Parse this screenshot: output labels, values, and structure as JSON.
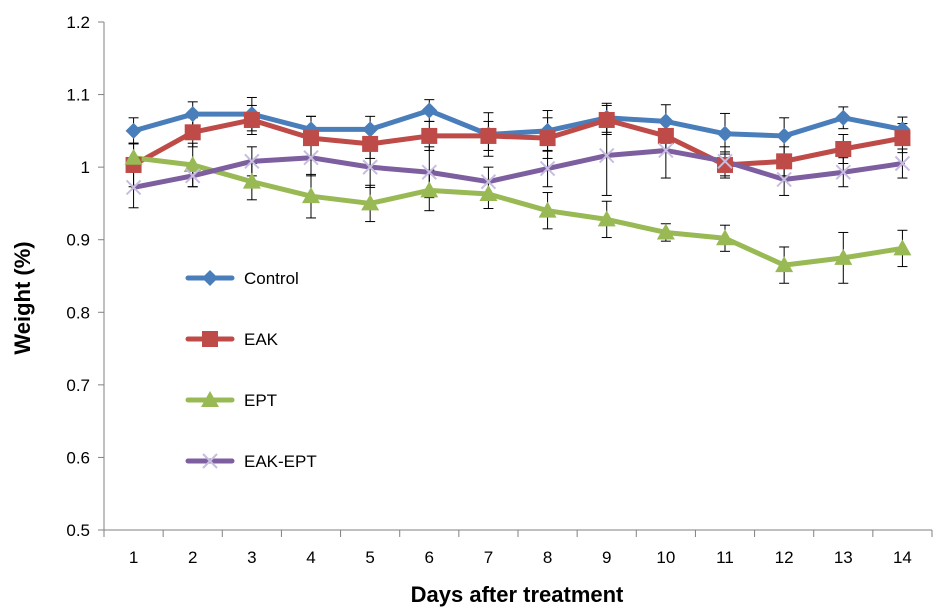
{
  "chart_data": {
    "type": "line",
    "title": "",
    "xlabel": "Days after treatment",
    "ylabel": "Weight (%)",
    "x": [
      1,
      2,
      3,
      4,
      5,
      6,
      7,
      8,
      9,
      10,
      11,
      12,
      13,
      14
    ],
    "xtick_labels": [
      "1",
      "2",
      "3",
      "4",
      "5",
      "6",
      "7",
      "8",
      "9",
      "10",
      "11",
      "12",
      "13",
      "14"
    ],
    "ylim": [
      0.5,
      1.2
    ],
    "yticks": [
      0.5,
      0.6,
      0.7,
      0.8,
      0.9,
      1.0,
      1.1,
      1.2
    ],
    "ytick_labels": [
      "0.5",
      "0.6",
      "0.7",
      "0.8",
      "0.9",
      "1",
      "1.1",
      "1.2"
    ],
    "grid": false,
    "legend_placement": "center-left",
    "series": [
      {
        "name": "Control",
        "color": "#4a7ebb",
        "marker": "diamond",
        "values": [
          1.05,
          1.073,
          1.073,
          1.052,
          1.052,
          1.078,
          1.045,
          1.05,
          1.068,
          1.063,
          1.046,
          1.043,
          1.068,
          1.052
        ],
        "errors": [
          0.018,
          0.017,
          0.023,
          0.018,
          0.018,
          0.015,
          0.03,
          0.028,
          0.02,
          0.023,
          0.028,
          0.025,
          0.015,
          0.017
        ]
      },
      {
        "name": "EAK",
        "color": "#be4b48",
        "marker": "square",
        "values": [
          1.003,
          1.048,
          1.065,
          1.04,
          1.032,
          1.043,
          1.043,
          1.04,
          1.065,
          1.043,
          1.003,
          1.008,
          1.025,
          1.04
        ],
        "errors": [
          0.03,
          0.02,
          0.02,
          0.03,
          0.02,
          0.02,
          0.02,
          0.028,
          0.02,
          0.02,
          0.018,
          0.02,
          0.02,
          0.02
        ]
      },
      {
        "name": "EPT",
        "color": "#98b954",
        "marker": "triangle",
        "values": [
          1.013,
          1.003,
          0.98,
          0.96,
          0.95,
          0.968,
          0.963,
          0.94,
          0.928,
          0.91,
          0.902,
          0.865,
          0.875,
          0.888
        ],
        "errors": [
          0.02,
          0.03,
          0.025,
          0.03,
          0.025,
          0.028,
          0.02,
          0.025,
          0.025,
          0.012,
          0.018,
          0.025,
          0.035,
          0.025
        ]
      },
      {
        "name": "EAK-EPT",
        "color": "#7d5fa0",
        "marker": "x",
        "values": [
          0.972,
          0.988,
          1.008,
          1.013,
          1.0,
          0.993,
          0.98,
          0.998,
          1.016,
          1.023,
          1.008,
          0.983,
          0.993,
          1.005
        ],
        "errors": [
          0.028,
          0.015,
          0.02,
          0.025,
          0.028,
          0.035,
          0.02,
          0.025,
          0.055,
          0.038,
          0.02,
          0.022,
          0.02,
          0.02
        ]
      }
    ]
  }
}
